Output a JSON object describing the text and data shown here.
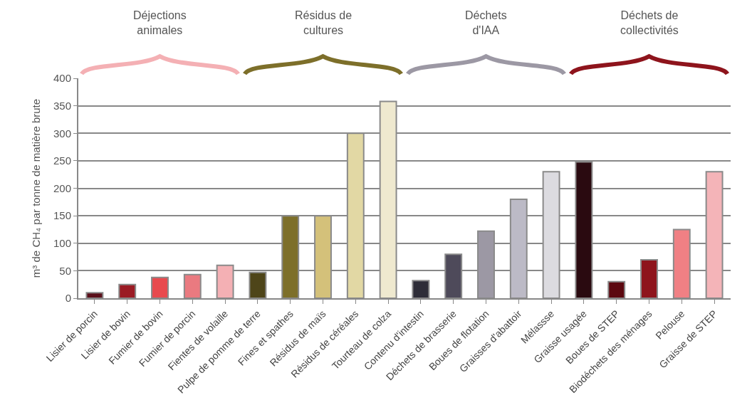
{
  "chart_data": {
    "type": "bar",
    "ylabel": "m³ de CH₄ par tonne de matière brute",
    "categories": [
      "Lisier de porcin",
      "Lisier de bovin",
      "Fumier de bovin",
      "Fumier de porcin",
      "Fientes de volaille",
      "Pulpe de pomme de terre",
      "Fines et spathes",
      "Résidus de maïs",
      "Résidus de céréales",
      "Tourteau de colza",
      "Contenu d'intestin",
      "Déchets de brasserie",
      "Boues de flotation",
      "Graisses d'abattoir",
      "Mélassse",
      "Graisse usagée",
      "Boues de STEP",
      "Biodéchets des ménages",
      "Pelouse",
      "Graisse de STEP"
    ],
    "values": [
      10,
      25,
      38,
      43,
      60,
      47,
      150,
      150,
      300,
      358,
      32,
      80,
      122,
      180,
      230,
      248,
      30,
      70,
      125,
      230
    ],
    "colors": [
      "#5a0f1a",
      "#9b1b24",
      "#e84a4e",
      "#ea7a80",
      "#f4b0b4",
      "#4e4519",
      "#7d6f2a",
      "#d4c17a",
      "#e2d8a4",
      "#efe9cf",
      "#2e2d38",
      "#4e4a5a",
      "#9c98a4",
      "#bcbac6",
      "#dcdbe0",
      "#2a0a10",
      "#5c0810",
      "#8e141c",
      "#f08084",
      "#f4b4b8"
    ],
    "annotations": [
      "Déjections\nanimales",
      "Résidus de\ncultures",
      "Déchets\nd'IAA",
      "Déchets de\ncollectivités"
    ],
    "ylim": [
      0,
      400
    ],
    "yticks": [
      0,
      50,
      100,
      150,
      200,
      250,
      300,
      350,
      400
    ],
    "grid": "y"
  }
}
